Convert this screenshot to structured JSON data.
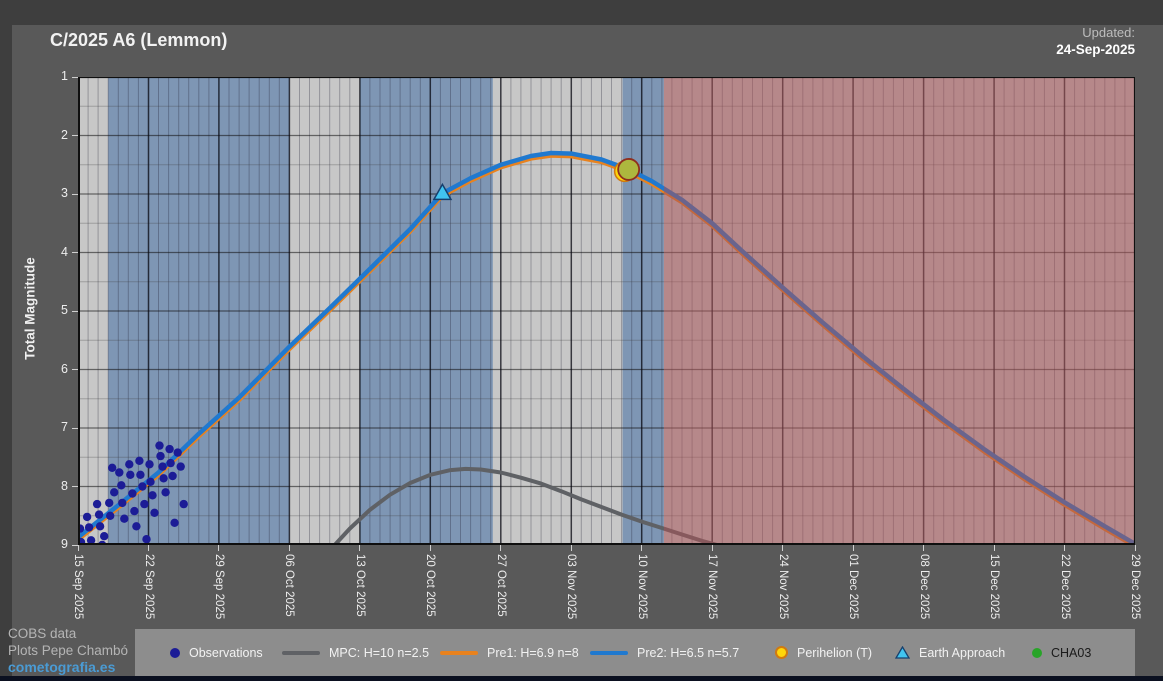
{
  "header": {
    "title": "C/2025 A6 (Lemmon)",
    "updated_label": "Updated:",
    "updated_date": "24-Sep-2025"
  },
  "credits": {
    "line1": "COBS data",
    "line2": "Plots Pepe Chambó",
    "site": "cometografia.es"
  },
  "chart_data": {
    "type": "line",
    "title": "C/2025 A6 (Lemmon)",
    "ylabel": "Total Magnitude",
    "y_ticks": [
      1,
      2,
      3,
      4,
      5,
      6,
      7,
      8,
      9
    ],
    "ylim": [
      1,
      9
    ],
    "y_axis_inverted": true,
    "x_tick_labels": [
      "15 Sep 2025",
      "22 Sep 2025",
      "29 Sep 2025",
      "06 Oct 2025",
      "13 Oct 2025",
      "20 Oct 2025",
      "27 Oct 2025",
      "03 Nov 2025",
      "10 Nov 2025",
      "17 Nov 2025",
      "24 Nov 2025",
      "01 Dec 2025",
      "08 Dec 2025",
      "15 Dec 2025",
      "22 Dec 2025",
      "29 Dec 2025"
    ],
    "x_days_per_tick": 7,
    "x_range_days": [
      0,
      105
    ],
    "background_bands": {
      "base_color": "#c7c7c7",
      "blue_color": "#7e96b4",
      "red_overlay_color": "rgba(168,84,88,0.55)",
      "blue_ranges_days": [
        [
          3,
          21
        ],
        [
          28,
          41.2
        ],
        [
          54.1,
          58.2
        ]
      ],
      "red_range_days": [
        58.2,
        105
      ]
    },
    "series": [
      {
        "name": "Pre1: H=6.9 n=8",
        "kind": "line",
        "color": "#e8821e",
        "width": 3.5,
        "points": [
          [
            0,
            8.92
          ],
          [
            4,
            8.37
          ],
          [
            8,
            7.81
          ],
          [
            12,
            7.15
          ],
          [
            16,
            6.53
          ],
          [
            21,
            5.66
          ],
          [
            25,
            5.0
          ],
          [
            29,
            4.33
          ],
          [
            33,
            3.65
          ],
          [
            36.2,
            3.04
          ],
          [
            39,
            2.78
          ],
          [
            42,
            2.55
          ],
          [
            45,
            2.4
          ],
          [
            47,
            2.35
          ],
          [
            49,
            2.36
          ],
          [
            52,
            2.46
          ],
          [
            54.7,
            2.63
          ],
          [
            57,
            2.83
          ],
          [
            60,
            3.15
          ],
          [
            63,
            3.55
          ],
          [
            66,
            4.03
          ],
          [
            70,
            4.65
          ],
          [
            74,
            5.25
          ],
          [
            78,
            5.83
          ],
          [
            82,
            6.38
          ],
          [
            86,
            6.91
          ],
          [
            90,
            7.41
          ],
          [
            94,
            7.88
          ],
          [
            98,
            8.32
          ],
          [
            102,
            8.73
          ],
          [
            105,
            9.03
          ]
        ]
      },
      {
        "name": "MPC: H=10 n=2.5",
        "kind": "line",
        "color": "#5f6165",
        "width": 4,
        "points": [
          [
            25.5,
            9.0
          ],
          [
            27,
            8.72
          ],
          [
            29,
            8.4
          ],
          [
            31,
            8.14
          ],
          [
            33,
            7.94
          ],
          [
            35,
            7.8
          ],
          [
            37,
            7.72
          ],
          [
            38.5,
            7.7
          ],
          [
            40,
            7.71
          ],
          [
            42,
            7.76
          ],
          [
            44,
            7.85
          ],
          [
            46,
            7.95
          ],
          [
            48,
            8.08
          ],
          [
            50,
            8.22
          ],
          [
            52,
            8.35
          ],
          [
            54,
            8.48
          ],
          [
            56,
            8.6
          ],
          [
            58,
            8.71
          ],
          [
            60,
            8.82
          ],
          [
            62,
            8.93
          ],
          [
            63.5,
            9.0
          ]
        ]
      },
      {
        "name": "Pre2: H=6.5 n=5.7",
        "kind": "line",
        "color": "#2079cf",
        "width": 4.5,
        "points": [
          [
            0,
            8.87
          ],
          [
            4,
            8.32
          ],
          [
            8,
            7.76
          ],
          [
            12,
            7.1
          ],
          [
            16,
            6.48
          ],
          [
            21,
            5.61
          ],
          [
            25,
            4.95
          ],
          [
            29,
            4.28
          ],
          [
            33,
            3.6
          ],
          [
            36.2,
            2.99
          ],
          [
            39,
            2.73
          ],
          [
            42,
            2.5
          ],
          [
            45,
            2.35
          ],
          [
            47,
            2.3
          ],
          [
            49,
            2.31
          ],
          [
            52,
            2.41
          ],
          [
            54.7,
            2.58
          ],
          [
            57,
            2.78
          ],
          [
            60,
            3.1
          ],
          [
            63,
            3.5
          ],
          [
            66,
            3.98
          ],
          [
            70,
            4.6
          ],
          [
            74,
            5.2
          ],
          [
            78,
            5.78
          ],
          [
            82,
            6.33
          ],
          [
            86,
            6.86
          ],
          [
            90,
            7.36
          ],
          [
            94,
            7.83
          ],
          [
            98,
            8.27
          ],
          [
            102,
            8.68
          ],
          [
            105,
            8.98
          ]
        ]
      },
      {
        "name": "Observations",
        "kind": "scatter",
        "color": "#1c1c96",
        "radius": 4.2,
        "points": [
          [
            0.2,
            8.72
          ],
          [
            0.3,
            8.95
          ],
          [
            0.5,
            9.05
          ],
          [
            0.9,
            8.52
          ],
          [
            1.1,
            8.7
          ],
          [
            1.3,
            8.92
          ],
          [
            1.9,
            8.3
          ],
          [
            2.1,
            8.48
          ],
          [
            2.2,
            8.68
          ],
          [
            2.4,
            9.0
          ],
          [
            2.6,
            8.85
          ],
          [
            3.1,
            8.28
          ],
          [
            3.2,
            8.5
          ],
          [
            3.4,
            7.68
          ],
          [
            3.6,
            8.1
          ],
          [
            4.1,
            7.76
          ],
          [
            4.3,
            7.98
          ],
          [
            4.4,
            8.28
          ],
          [
            4.6,
            8.55
          ],
          [
            5.1,
            7.62
          ],
          [
            5.2,
            7.8
          ],
          [
            5.4,
            8.12
          ],
          [
            5.6,
            8.42
          ],
          [
            5.8,
            8.68
          ],
          [
            6.1,
            7.56
          ],
          [
            6.2,
            7.8
          ],
          [
            6.4,
            8.0
          ],
          [
            6.6,
            8.3
          ],
          [
            6.8,
            8.9
          ],
          [
            7.1,
            7.62
          ],
          [
            7.2,
            7.92
          ],
          [
            7.4,
            8.15
          ],
          [
            7.6,
            8.45
          ],
          [
            8.1,
            7.3
          ],
          [
            8.2,
            7.48
          ],
          [
            8.4,
            7.66
          ],
          [
            8.5,
            7.86
          ],
          [
            8.7,
            8.1
          ],
          [
            9.1,
            7.36
          ],
          [
            9.2,
            7.6
          ],
          [
            9.4,
            7.82
          ],
          [
            9.6,
            8.62
          ],
          [
            9.9,
            7.42
          ],
          [
            10.2,
            7.66
          ],
          [
            10.5,
            8.3
          ]
        ]
      }
    ],
    "markers": [
      {
        "name": "Earth Approach",
        "symbol": "triangle",
        "day": 36.2,
        "mag": 2.99,
        "fill": "#41c4f0",
        "stroke": "#17406e"
      },
      {
        "name": "Perihelion (T)",
        "symbol": "circle",
        "day": 54.7,
        "mag": 2.58,
        "fill": "#adb73e",
        "stroke": "#8f2e1e",
        "under_fill": "#ffd60a",
        "under_stroke": "#d07a10"
      }
    ]
  },
  "legend": {
    "items": [
      {
        "label": "Observations",
        "marker": "dot",
        "color": "#1c1c96"
      },
      {
        "label": "MPC: H=10 n=2.5",
        "marker": "line",
        "color": "#5f6165"
      },
      {
        "label": "Pre1: H=6.9 n=8",
        "marker": "line",
        "color": "#e8821e"
      },
      {
        "label": "Pre2: H=6.5 n=5.7",
        "marker": "line",
        "color": "#2079cf"
      },
      {
        "label": "Perihelion (T)",
        "marker": "dot-outlined",
        "color": "#ffd60a",
        "outline": "#d07a10"
      },
      {
        "label": "Earth Approach",
        "marker": "triangle",
        "color": "#41c4f0",
        "outline": "#17406e"
      },
      {
        "label": "CHA03",
        "marker": "dot",
        "color": "#28a428",
        "text_color": "#1a1a1a"
      }
    ]
  }
}
